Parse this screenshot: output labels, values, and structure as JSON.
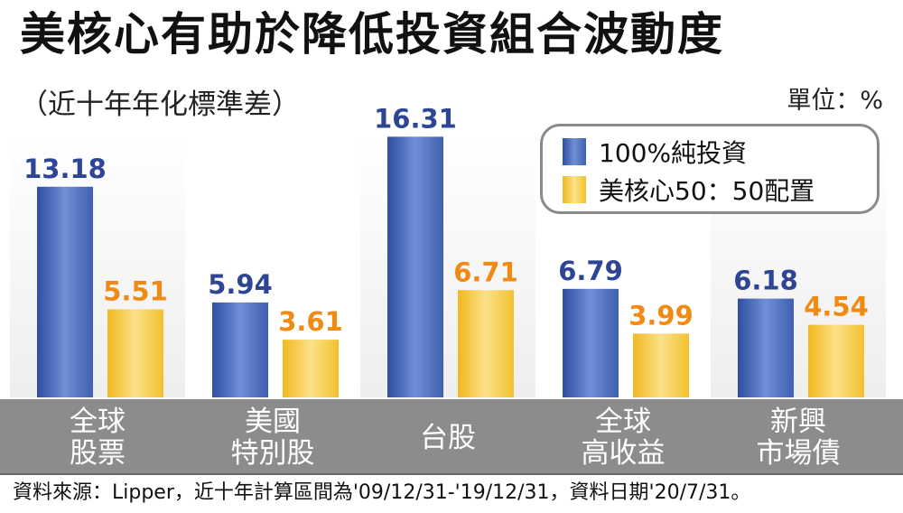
{
  "chart_data": {
    "type": "bar",
    "title": "美核心有助於降低投資組合波動度",
    "subtitle": "（近十年年化標準差）",
    "unit_label": "單位：%",
    "categories": [
      "全球\n股票",
      "美國\n特別股",
      "台股",
      "全球\n高收益",
      "新興\n市場債"
    ],
    "series": [
      {
        "name": "100%純投資",
        "values": [
          13.18,
          5.94,
          16.31,
          6.79,
          6.18
        ]
      },
      {
        "name": "美核心50：50配置",
        "values": [
          5.51,
          3.61,
          6.71,
          3.99,
          4.54
        ]
      }
    ],
    "value_labels": [
      [
        "13.18",
        "5.94",
        "16.31",
        "6.79",
        "6.18"
      ],
      [
        "5.51",
        "3.61",
        "6.71",
        "3.99",
        "4.54"
      ]
    ],
    "ylim": [
      0,
      16.5
    ],
    "grid": false,
    "legend_position": "top-right",
    "source": "資料來源：Lipper，近十年計算區間為'09/12/31-'19/12/31，資料日期'20/7/31。",
    "colors": {
      "series_0": "#3f5fb0",
      "series_0_light": "#6f8fd6",
      "series_1": "#f2c12e",
      "series_1_light": "#fbe188",
      "value_label_0": "#2e4596",
      "value_label_1": "#f08a12",
      "category_band": "#8c8c8c",
      "column_shade": "#f3f3f3"
    }
  }
}
